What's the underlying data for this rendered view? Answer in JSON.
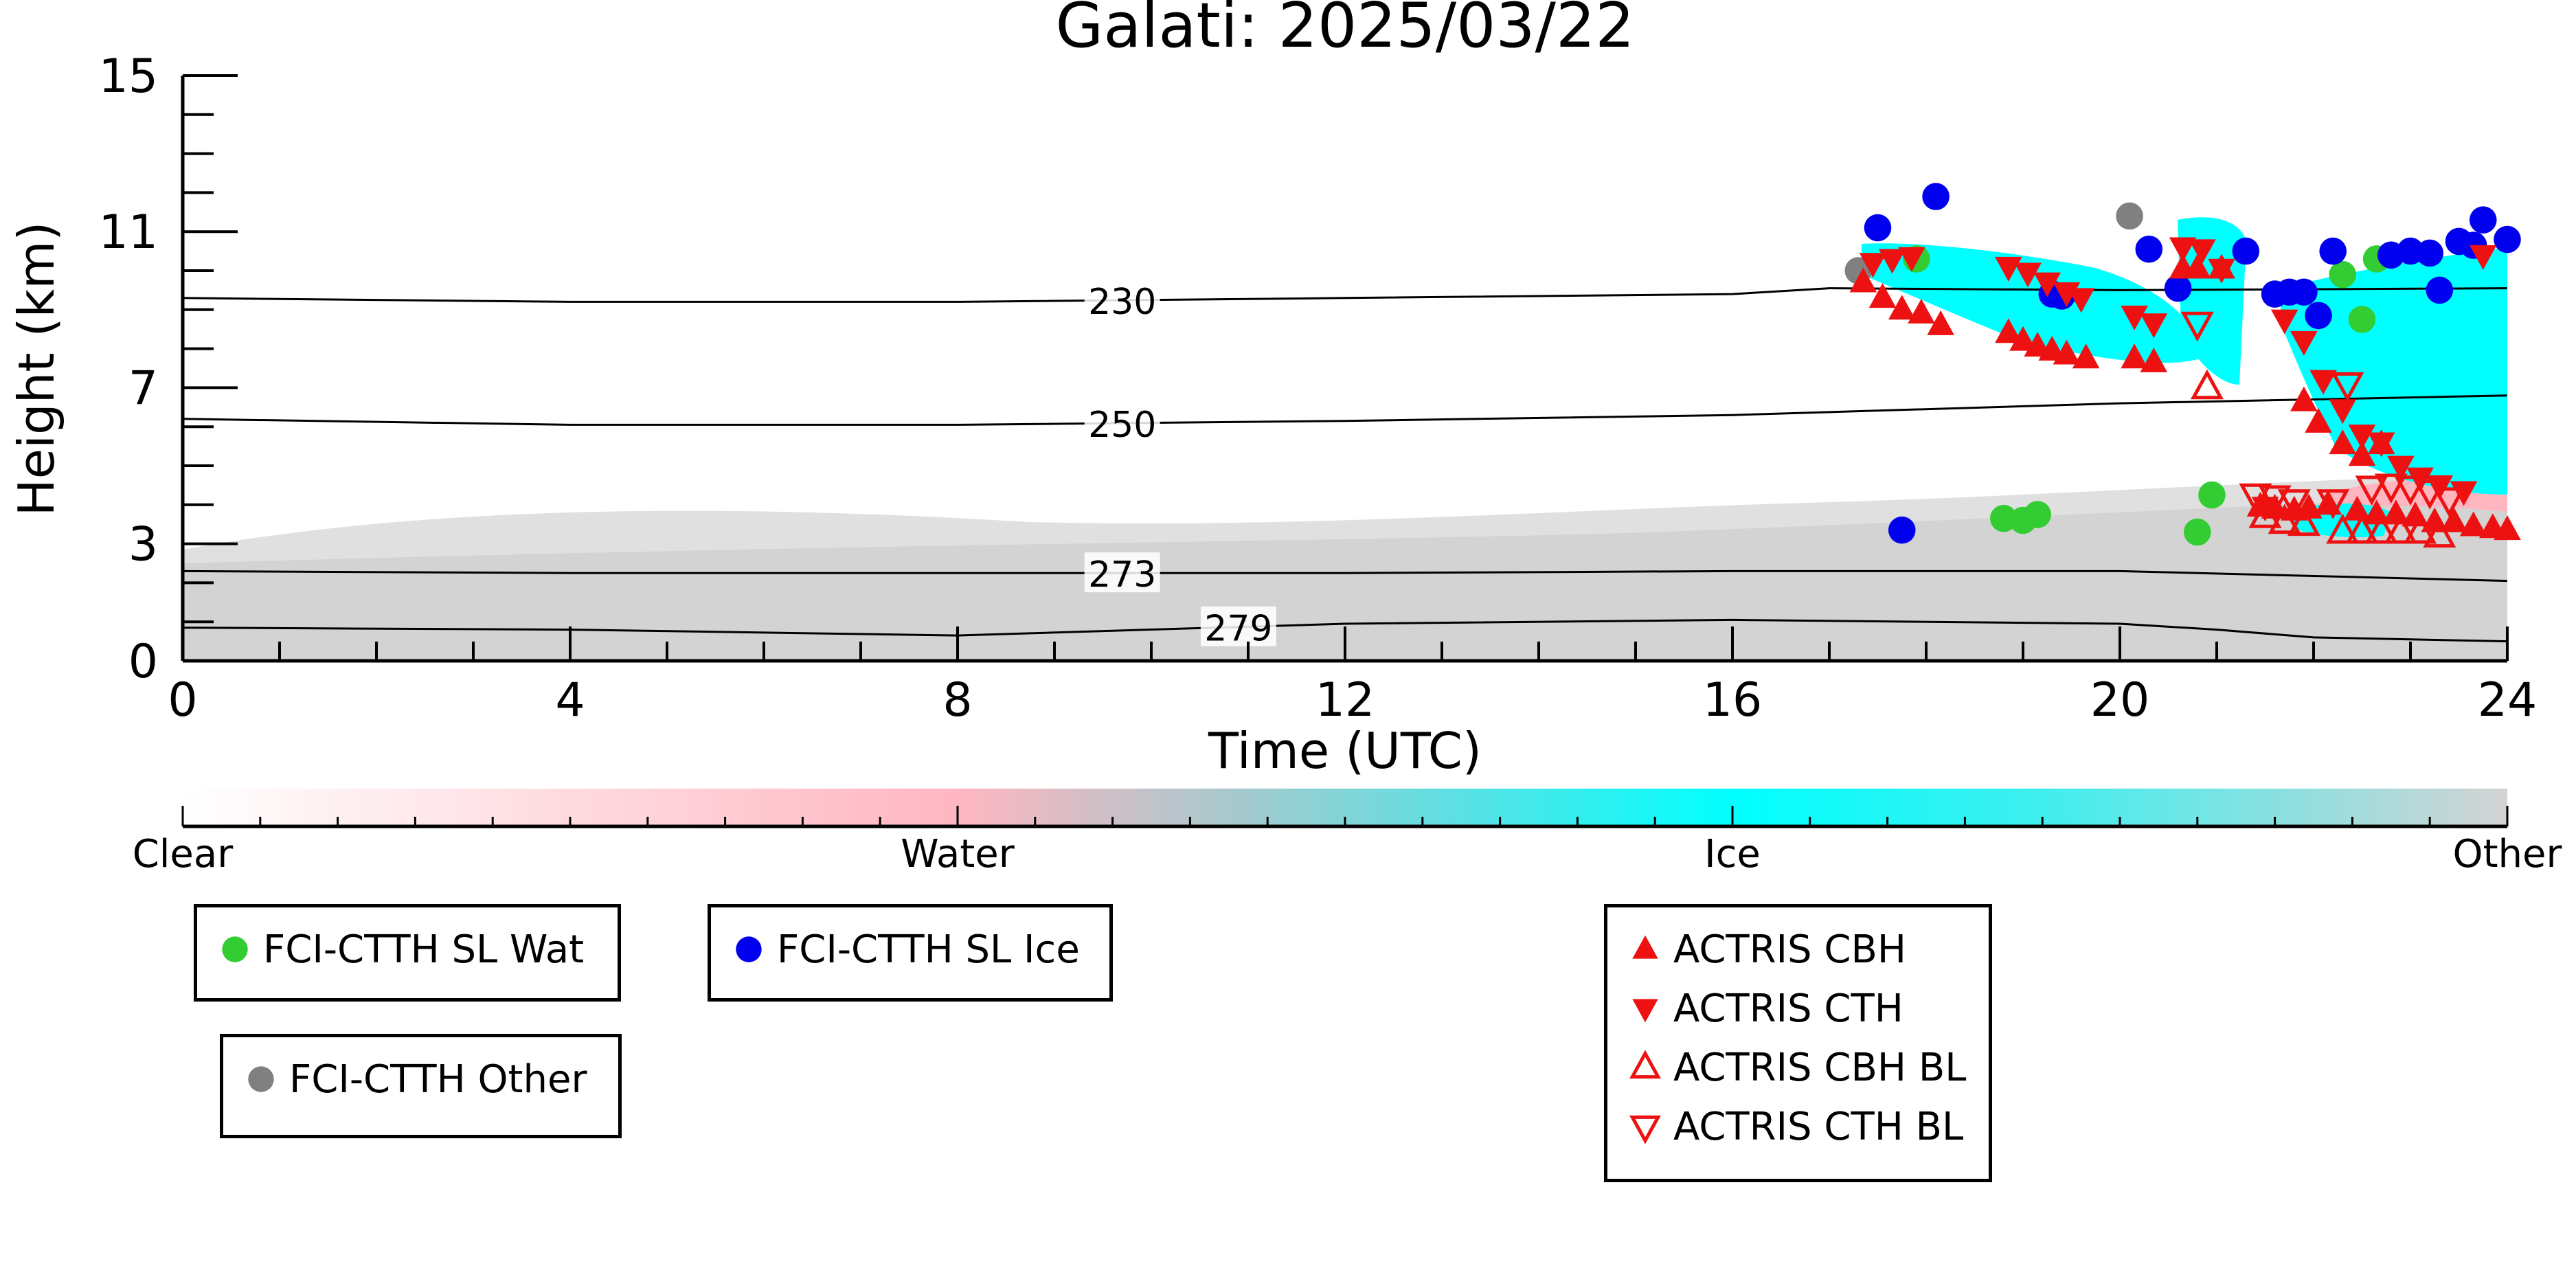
{
  "chart_data": {
    "type": "scatter",
    "title": "Galati: 2025/03/22",
    "xlabel": "Time (UTC)",
    "ylabel": "Height (km)",
    "xlim": [
      0,
      24
    ],
    "ylim": [
      0,
      15
    ],
    "xticks": [
      "0",
      "4",
      "8",
      "12",
      "16",
      "20",
      "24"
    ],
    "yticks": [
      "0",
      "3",
      "7",
      "11",
      "15"
    ],
    "background": "cloud classification image (Clear / Water / Ice / Other) with temperature contours",
    "colorbar": {
      "labels": [
        "Clear",
        "Water",
        "Ice",
        "Other"
      ],
      "colors": [
        "#ffffff",
        "#ffb6c1",
        "#00ffff",
        "#d3d3d3"
      ]
    },
    "contours": [
      {
        "label": "230",
        "x": [
          0,
          4,
          8,
          12,
          16,
          17,
          20,
          24
        ],
        "y": [
          9.3,
          9.2,
          9.2,
          9.3,
          9.4,
          9.55,
          9.5,
          9.55
        ]
      },
      {
        "label": "250",
        "x": [
          0,
          4,
          8,
          12,
          16,
          20,
          24
        ],
        "y": [
          6.2,
          6.05,
          6.05,
          6.15,
          6.3,
          6.6,
          6.8
        ]
      },
      {
        "label": "273",
        "x": [
          0,
          4,
          8,
          12,
          16,
          20,
          24
        ],
        "y": [
          2.3,
          2.25,
          2.25,
          2.25,
          2.3,
          2.3,
          2.05
        ]
      },
      {
        "label": "279",
        "x": [
          0,
          4,
          8,
          12,
          16,
          20,
          21,
          22,
          24
        ],
        "y": [
          0.85,
          0.8,
          0.65,
          0.95,
          1.05,
          0.95,
          0.8,
          0.6,
          0.5
        ]
      }
    ],
    "series": [
      {
        "name": "FCI-CTTH SL Wat",
        "color": "#33cc33",
        "marker": "circle",
        "x": [
          17.9,
          18.8,
          19.0,
          19.15,
          20.8,
          20.95,
          22.3,
          22.5,
          22.65
        ],
        "y": [
          10.3,
          3.65,
          3.6,
          3.75,
          3.3,
          4.25,
          9.9,
          8.75,
          10.3
        ]
      },
      {
        "name": "FCI-CTTH SL Ice",
        "color": "#0000ee",
        "marker": "circle",
        "x": [
          17.5,
          17.75,
          18.1,
          19.3,
          19.4,
          20.3,
          20.6,
          21.3,
          21.6,
          21.75,
          21.9,
          22.05,
          22.2,
          22.8,
          23.0,
          23.2,
          23.3,
          23.5,
          23.65,
          23.75,
          24.0
        ],
        "y": [
          11.1,
          3.35,
          11.9,
          9.4,
          9.35,
          10.55,
          9.55,
          10.5,
          9.4,
          9.45,
          9.45,
          8.85,
          10.5,
          10.4,
          10.5,
          10.45,
          9.5,
          10.75,
          10.65,
          11.3,
          10.8
        ]
      },
      {
        "name": "FCI-CTTH Other",
        "color": "#808080",
        "marker": "circle",
        "x": [
          17.3,
          20.1
        ],
        "y": [
          10.0,
          11.4
        ]
      },
      {
        "name": "ACTRIS CBH",
        "color": "#ee1111",
        "marker": "triangle-up",
        "x": [
          17.35,
          17.55,
          17.75,
          17.95,
          18.15,
          18.85,
          19.0,
          19.15,
          19.3,
          19.45,
          19.65,
          20.15,
          20.35,
          20.65,
          20.8,
          21.05,
          21.45,
          21.6,
          21.8,
          21.95,
          22.15,
          22.45,
          22.65,
          22.85,
          23.05,
          23.25,
          23.45,
          23.65,
          23.85,
          24.0,
          21.9,
          22.05,
          22.3,
          22.5,
          22.7
        ],
        "y": [
          9.7,
          9.3,
          9.0,
          8.9,
          8.6,
          8.4,
          8.2,
          8.05,
          7.95,
          7.85,
          7.75,
          7.75,
          7.65,
          10.05,
          10.05,
          10.05,
          3.95,
          3.9,
          3.85,
          3.9,
          4.0,
          3.85,
          3.75,
          3.75,
          3.7,
          3.55,
          3.55,
          3.45,
          3.4,
          3.35,
          6.65,
          6.1,
          5.55,
          5.25,
          5.55
        ]
      },
      {
        "name": "ACTRIS CTH",
        "color": "#ee1111",
        "marker": "triangle-down",
        "x": [
          17.45,
          17.65,
          17.85,
          18.85,
          19.05,
          19.25,
          19.45,
          19.6,
          20.15,
          20.35,
          20.65,
          20.85,
          21.05,
          21.5,
          21.7,
          21.9,
          22.1,
          22.3,
          22.5,
          22.7,
          22.9,
          23.1,
          23.3,
          23.55,
          23.75
        ],
        "y": [
          10.2,
          10.3,
          10.35,
          10.1,
          9.95,
          9.7,
          9.45,
          9.3,
          8.85,
          8.65,
          10.6,
          10.55,
          10.05,
          3.95,
          8.75,
          8.2,
          7.2,
          6.45,
          5.8,
          5.6,
          5.0,
          4.7,
          4.5,
          4.35,
          10.4
        ]
      },
      {
        "name": "ACTRIS CBH BL",
        "color": "#ee1111",
        "marker": "triangle-up-open",
        "x": [
          20.9,
          21.5,
          21.7,
          21.9,
          22.3,
          22.5,
          22.7,
          22.9,
          23.1,
          23.3
        ],
        "y": [
          7.0,
          3.7,
          3.55,
          3.5,
          3.3,
          3.3,
          3.3,
          3.3,
          3.3,
          3.2
        ]
      },
      {
        "name": "ACTRIS CTH BL",
        "color": "#ee1111",
        "marker": "triangle-down-open",
        "x": [
          20.8,
          21.4,
          21.6,
          21.8,
          22.2,
          22.6,
          22.8,
          23.0,
          23.2,
          23.4,
          22.35
        ],
        "y": [
          8.65,
          4.25,
          4.2,
          4.1,
          4.1,
          4.45,
          4.5,
          4.45,
          4.35,
          4.15,
          7.1
        ]
      }
    ],
    "legend_groups": [
      [
        "FCI-CTTH SL Wat"
      ],
      [
        "FCI-CTTH SL Ice"
      ],
      [
        "FCI-CTTH Other"
      ],
      [
        "ACTRIS CBH",
        "ACTRIS CTH",
        "ACTRIS CBH BL",
        "ACTRIS CTH BL"
      ]
    ]
  }
}
